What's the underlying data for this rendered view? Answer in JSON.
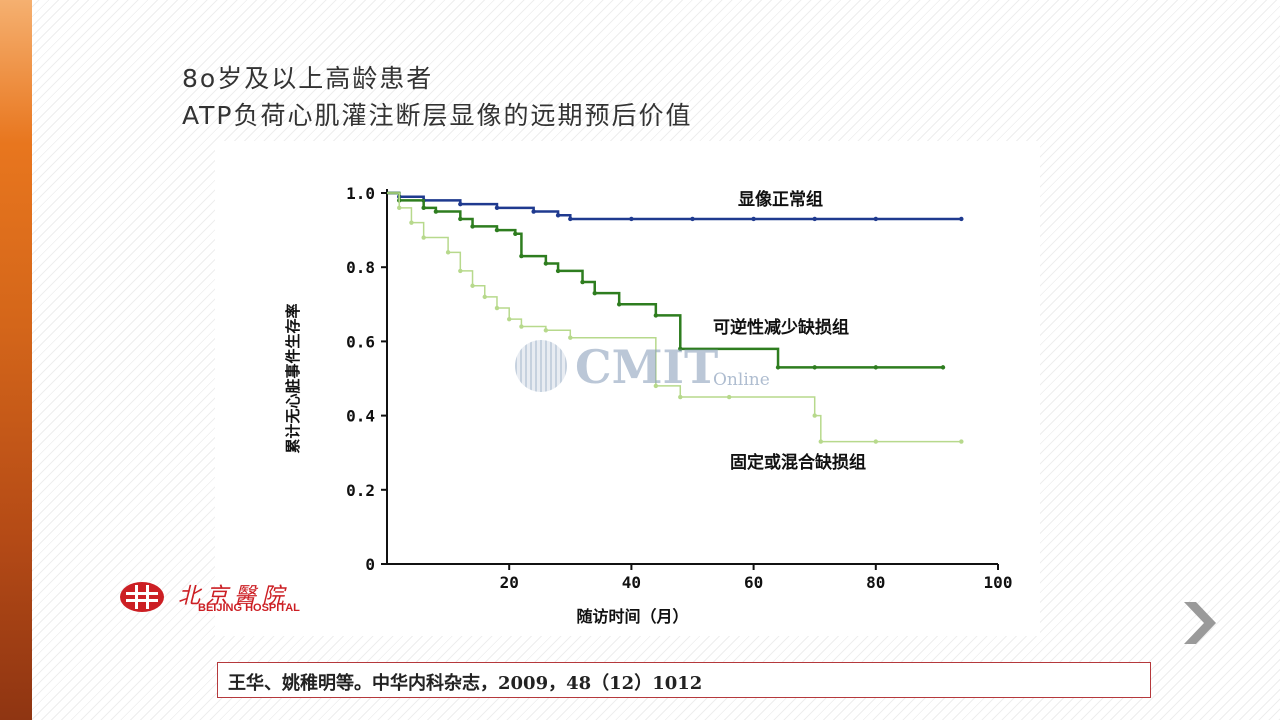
{
  "slide": {
    "title_line1": "8o岁及以上高龄患者",
    "title_line2": "ATP负荷心肌灌注断层显像的远期预后价值",
    "citation": "王华、姚稚明等。中华内科杂志，2009，48（12）1012",
    "colors": {
      "accent": "#e8761e",
      "border": "#b5393c",
      "logo": "#cc1f24"
    }
  },
  "watermark": {
    "main": "CMIT",
    "sub": "Online"
  },
  "logo": {
    "chinese": "北京醫院",
    "english": "BEIJING HOSPITAL"
  },
  "navigation": {
    "next_icon": "chevron-right-icon"
  },
  "chart_data": {
    "type": "line",
    "title": "",
    "xlabel": "随访时间（月）",
    "ylabel": "累计无心脏事件生存率",
    "xlim": [
      0,
      100
    ],
    "ylim": [
      0,
      1.0
    ],
    "xticks": [
      "20",
      "40",
      "60",
      "80",
      "100"
    ],
    "yticks": [
      "0",
      "0.2",
      "0.4",
      "0.6",
      "0.8",
      "1.0"
    ],
    "grid": false,
    "series": [
      {
        "name": "显像正常组",
        "color": "#1f3a8f",
        "step": true,
        "points": [
          [
            0,
            1.0
          ],
          [
            2,
            0.99
          ],
          [
            6,
            0.98
          ],
          [
            12,
            0.97
          ],
          [
            18,
            0.96
          ],
          [
            24,
            0.95
          ],
          [
            28,
            0.94
          ],
          [
            30,
            0.93
          ],
          [
            40,
            0.93
          ],
          [
            50,
            0.93
          ],
          [
            60,
            0.93
          ],
          [
            70,
            0.93
          ],
          [
            80,
            0.93
          ],
          [
            94,
            0.93
          ]
        ]
      },
      {
        "name": "可逆性减少缺损组",
        "color": "#2e7d1f",
        "step": true,
        "points": [
          [
            0,
            1.0
          ],
          [
            2,
            0.98
          ],
          [
            6,
            0.96
          ],
          [
            8,
            0.95
          ],
          [
            12,
            0.93
          ],
          [
            14,
            0.91
          ],
          [
            18,
            0.9
          ],
          [
            21,
            0.89
          ],
          [
            22,
            0.83
          ],
          [
            26,
            0.81
          ],
          [
            28,
            0.79
          ],
          [
            32,
            0.76
          ],
          [
            34,
            0.73
          ],
          [
            38,
            0.7
          ],
          [
            44,
            0.67
          ],
          [
            48,
            0.58
          ],
          [
            64,
            0.53
          ],
          [
            70,
            0.53
          ],
          [
            80,
            0.53
          ],
          [
            91,
            0.53
          ]
        ]
      },
      {
        "name": "固定或混合缺损组",
        "color": "#b7d98c",
        "step": true,
        "points": [
          [
            0,
            1.0
          ],
          [
            2,
            0.96
          ],
          [
            4,
            0.92
          ],
          [
            6,
            0.88
          ],
          [
            10,
            0.84
          ],
          [
            12,
            0.79
          ],
          [
            14,
            0.75
          ],
          [
            16,
            0.72
          ],
          [
            18,
            0.69
          ],
          [
            20,
            0.66
          ],
          [
            22,
            0.64
          ],
          [
            26,
            0.63
          ],
          [
            30,
            0.61
          ],
          [
            44,
            0.48
          ],
          [
            48,
            0.45
          ],
          [
            56,
            0.45
          ],
          [
            70,
            0.4
          ],
          [
            71,
            0.33
          ],
          [
            80,
            0.33
          ],
          [
            94,
            0.33
          ]
        ]
      }
    ]
  }
}
